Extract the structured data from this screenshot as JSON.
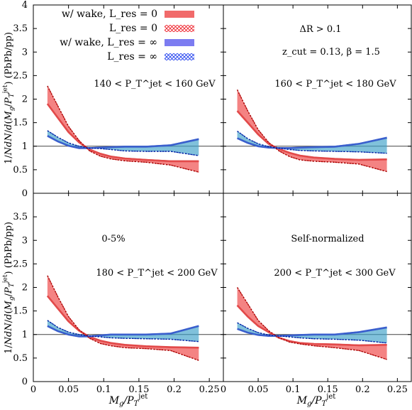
{
  "chart_data": {
    "type": "area",
    "shared": {
      "xlabel": "M_g / P_T^jet",
      "ylabel": "1/N dN/d(M_g/P_T^jet) (PbPb/pp)",
      "xlim": [
        0,
        0.27
      ],
      "ylim": [
        0,
        4
      ],
      "reference_line": 1,
      "legend_placement": "top-left",
      "xticks": [
        "0",
        "0.05",
        "0.1",
        "0.15",
        "0.2",
        "0.25"
      ],
      "yticks_top": [
        "0",
        "0.5",
        "1",
        "1.5",
        "2",
        "2.5",
        "3",
        "3.5",
        "4"
      ],
      "yticks_bottom": [
        "0",
        "0.5",
        "1",
        "1.5",
        "2",
        "2.5",
        "3",
        "3.5"
      ]
    },
    "legend": [
      {
        "label": "w/ wake, L_res = 0",
        "style": "solid-band",
        "color": "#f47e7e"
      },
      {
        "label": "L_res = 0",
        "style": "hatched-band",
        "color": "#ee1c25"
      },
      {
        "label": "w/ wake, L_res = ∞",
        "style": "solid-band",
        "color": "#7e7ef4"
      },
      {
        "label": "L_res = ∞",
        "style": "hatched-band",
        "color": "#1c3cee"
      }
    ],
    "panels": [
      {
        "annotations": [
          "140 < P_T^jet < 160 GeV"
        ],
        "x": [
          0.02,
          0.035,
          0.05,
          0.065,
          0.08,
          0.095,
          0.11,
          0.13,
          0.16,
          0.195,
          0.235
        ],
        "red_wake": [
          1.9,
          1.6,
          1.3,
          1.08,
          0.93,
          0.84,
          0.78,
          0.74,
          0.71,
          0.68,
          0.68
        ],
        "red_nowake": [
          2.28,
          1.85,
          1.42,
          1.12,
          0.9,
          0.79,
          0.73,
          0.69,
          0.66,
          0.6,
          0.45
        ],
        "blue_wake": [
          1.22,
          1.1,
          1.01,
          0.96,
          0.96,
          0.97,
          0.98,
          0.99,
          0.99,
          1.02,
          1.15
        ],
        "blue_nowake": [
          1.33,
          1.19,
          1.07,
          1.0,
          0.96,
          0.95,
          0.93,
          0.9,
          0.89,
          0.89,
          0.8
        ]
      },
      {
        "annotations": [
          "ΔR > 0.1",
          "z_cut = 0.13, β = 1.5",
          "160 < P_T^jet < 180 GeV"
        ],
        "x": [
          0.02,
          0.035,
          0.05,
          0.065,
          0.08,
          0.095,
          0.11,
          0.13,
          0.16,
          0.195,
          0.235
        ],
        "red_wake": [
          1.75,
          1.5,
          1.25,
          1.05,
          0.94,
          0.86,
          0.8,
          0.76,
          0.73,
          0.71,
          0.72
        ],
        "red_nowake": [
          2.2,
          1.75,
          1.35,
          1.08,
          0.9,
          0.78,
          0.71,
          0.68,
          0.66,
          0.62,
          0.46
        ],
        "blue_wake": [
          1.17,
          1.07,
          1.0,
          0.97,
          0.96,
          0.96,
          0.97,
          0.98,
          0.99,
          1.05,
          1.18
        ],
        "blue_nowake": [
          1.32,
          1.16,
          1.05,
          0.99,
          0.96,
          0.93,
          0.91,
          0.9,
          0.89,
          0.88,
          0.85
        ]
      },
      {
        "annotations": [
          "0-5%",
          "180 < P_T^jet < 200 GeV"
        ],
        "x": [
          0.02,
          0.035,
          0.05,
          0.065,
          0.08,
          0.095,
          0.11,
          0.13,
          0.16,
          0.195,
          0.235
        ],
        "red_wake": [
          1.82,
          1.55,
          1.28,
          1.08,
          0.95,
          0.87,
          0.82,
          0.78,
          0.75,
          0.73,
          0.72
        ],
        "red_nowake": [
          2.25,
          1.8,
          1.38,
          1.1,
          0.92,
          0.81,
          0.76,
          0.72,
          0.7,
          0.66,
          0.45
        ],
        "blue_wake": [
          1.18,
          1.07,
          1.0,
          0.96,
          0.96,
          0.98,
          1.0,
          1.0,
          1.0,
          1.02,
          1.18
        ],
        "blue_nowake": [
          1.3,
          1.15,
          1.05,
          1.0,
          0.97,
          0.95,
          0.93,
          0.92,
          0.91,
          0.9,
          0.85
        ]
      },
      {
        "annotations": [
          "Self-normalized",
          "200 < P_T^jet < 300 GeV"
        ],
        "x": [
          0.02,
          0.035,
          0.05,
          0.065,
          0.08,
          0.095,
          0.11,
          0.13,
          0.16,
          0.195,
          0.235
        ],
        "red_wake": [
          1.62,
          1.38,
          1.18,
          1.05,
          0.93,
          0.86,
          0.82,
          0.8,
          0.79,
          0.77,
          0.78
        ],
        "red_nowake": [
          2.0,
          1.65,
          1.3,
          1.08,
          0.93,
          0.84,
          0.8,
          0.76,
          0.72,
          0.66,
          0.47
        ],
        "blue_wake": [
          1.12,
          1.04,
          0.99,
          0.97,
          0.97,
          0.98,
          0.99,
          1.0,
          1.0,
          1.05,
          1.15
        ],
        "blue_nowake": [
          1.25,
          1.13,
          1.04,
          0.99,
          0.97,
          0.95,
          0.93,
          0.91,
          0.9,
          0.88,
          0.82
        ]
      }
    ]
  }
}
